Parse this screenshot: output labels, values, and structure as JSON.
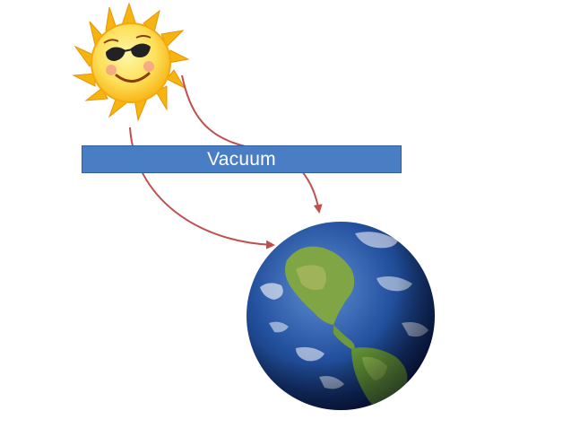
{
  "diagram": {
    "barrier_label": "Vacuum"
  },
  "colors": {
    "background": "#ffffff",
    "barrier_fill": "#4a7ec4",
    "barrier_text": "#ffffff",
    "arrow": "#c0504d",
    "sun_ray": "#f6b40e",
    "sun_face": "#fde05a",
    "ocean": "#1f4e99",
    "land": "#6e9a3d"
  },
  "icons": {
    "source": "sun-icon",
    "target": "earth-icon"
  }
}
